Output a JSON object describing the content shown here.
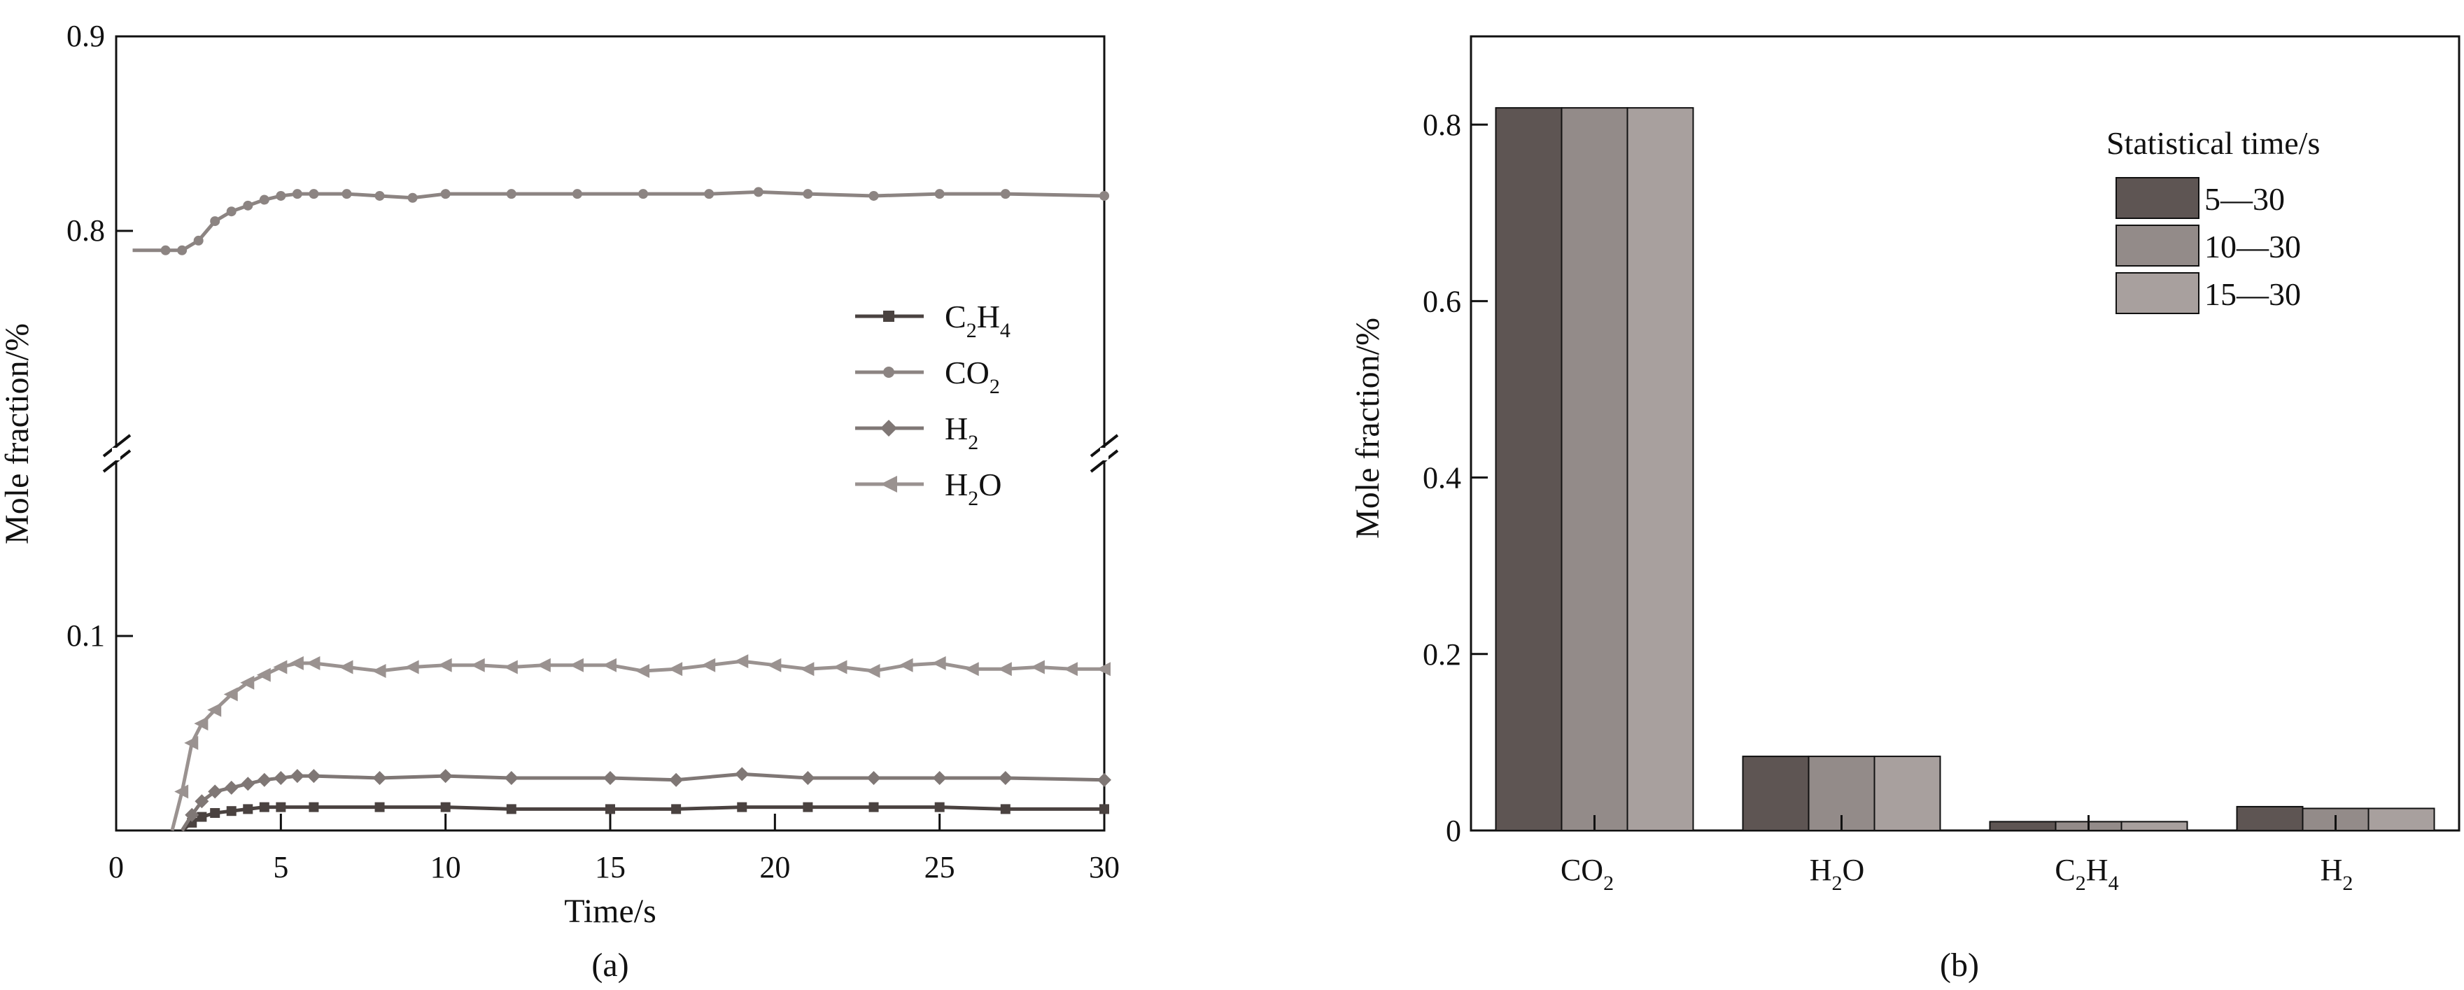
{
  "colors": {
    "axis": "#111111",
    "c2h4": "#4a4240",
    "co2": "#8c8482",
    "h2": "#7f7775",
    "h2o": "#9a9290",
    "bar_5_30": "#5e5553",
    "bar_10_30": "#938b89",
    "bar_15_30": "#a8a09e"
  },
  "chart_data": [
    {
      "panel": "(a)",
      "type": "line",
      "xlabel": "Time/s",
      "ylabel": "Mole fraction/%",
      "xlim": [
        0,
        30
      ],
      "x_ticks": [
        "0",
        "5",
        "10",
        "15",
        "20",
        "25",
        "30"
      ],
      "y_ticks_upper": [
        "0.8",
        "0.9"
      ],
      "y_ticks_lower": [
        "0.1"
      ],
      "ylim_lower": [
        0,
        0.12
      ],
      "ylim_upper": [
        0.76,
        0.9
      ],
      "broken_axis": true,
      "grid": false,
      "legend_position": "center-right",
      "series": [
        {
          "name": "C2H4",
          "label_main": "C",
          "subs": [
            "2",
            "4"
          ],
          "label_parts": [
            "C",
            "2",
            "H",
            "4"
          ],
          "marker": "square",
          "color_key": "c2h4",
          "x": [
            2.0,
            2.3,
            2.6,
            3.0,
            3.5,
            4.0,
            4.5,
            5.0,
            6.0,
            8.0,
            10.0,
            12.0,
            15.0,
            17.0,
            19.0,
            21.0,
            23.0,
            25.0,
            27.0,
            30.0
          ],
          "y": [
            0.0,
            0.004,
            0.007,
            0.009,
            0.01,
            0.011,
            0.012,
            0.012,
            0.012,
            0.012,
            0.012,
            0.011,
            0.011,
            0.011,
            0.012,
            0.012,
            0.012,
            0.012,
            0.011,
            0.011
          ]
        },
        {
          "name": "CO2",
          "label_parts": [
            "CO",
            "2"
          ],
          "marker": "circle",
          "color_key": "co2",
          "x": [
            0.5,
            1.5,
            2.0,
            2.5,
            3.0,
            3.5,
            4.0,
            4.5,
            5.0,
            5.5,
            6.0,
            7.0,
            8.0,
            9.0,
            10.0,
            12.0,
            14.0,
            16.0,
            18.0,
            19.5,
            21.0,
            23.0,
            25.0,
            27.0,
            30.0
          ],
          "y": [
            0.79,
            0.79,
            0.79,
            0.795,
            0.805,
            0.81,
            0.813,
            0.816,
            0.818,
            0.819,
            0.819,
            0.819,
            0.818,
            0.817,
            0.819,
            0.819,
            0.819,
            0.819,
            0.819,
            0.82,
            0.819,
            0.818,
            0.819,
            0.819,
            0.818
          ]
        },
        {
          "name": "H2",
          "label_parts": [
            "H",
            "2"
          ],
          "marker": "diamond",
          "color_key": "h2",
          "x": [
            2.0,
            2.3,
            2.6,
            3.0,
            3.5,
            4.0,
            4.5,
            5.0,
            5.5,
            6.0,
            8.0,
            10.0,
            12.0,
            15.0,
            17.0,
            19.0,
            21.0,
            23.0,
            25.0,
            27.0,
            30.0
          ],
          "y": [
            0.0,
            0.008,
            0.015,
            0.02,
            0.022,
            0.024,
            0.026,
            0.027,
            0.028,
            0.028,
            0.027,
            0.028,
            0.027,
            0.027,
            0.026,
            0.029,
            0.027,
            0.027,
            0.027,
            0.027,
            0.026
          ]
        },
        {
          "name": "H2O",
          "label_parts": [
            "H",
            "2",
            "O"
          ],
          "marker": "triangle-left",
          "color_key": "h2o",
          "x": [
            1.7,
            2.0,
            2.3,
            2.6,
            3.0,
            3.5,
            4.0,
            4.5,
            5.0,
            5.5,
            6.0,
            7.0,
            8.0,
            9.0,
            10.0,
            11.0,
            12.0,
            13.0,
            14.0,
            15.0,
            16.0,
            17.0,
            18.0,
            19.0,
            20.0,
            21.0,
            22.0,
            23.0,
            24.0,
            25.0,
            26.0,
            27.0,
            28.0,
            29.0,
            30.0
          ],
          "y": [
            0.0,
            0.02,
            0.045,
            0.055,
            0.062,
            0.07,
            0.076,
            0.08,
            0.084,
            0.086,
            0.086,
            0.084,
            0.082,
            0.084,
            0.085,
            0.085,
            0.084,
            0.085,
            0.085,
            0.085,
            0.082,
            0.083,
            0.085,
            0.087,
            0.085,
            0.083,
            0.084,
            0.082,
            0.085,
            0.086,
            0.083,
            0.083,
            0.084,
            0.083,
            0.083
          ]
        }
      ]
    },
    {
      "panel": "(b)",
      "type": "bar",
      "ylabel": "Mole fraction/%",
      "ylim": [
        0,
        0.9
      ],
      "y_ticks": [
        "0",
        "0.2",
        "0.4",
        "0.6",
        "0.8"
      ],
      "categories": [
        "CO2",
        "H2O",
        "C2H4",
        "H2"
      ],
      "category_label_parts": [
        [
          "CO",
          "2"
        ],
        [
          "H",
          "2",
          "O"
        ],
        [
          "C",
          "2",
          "H",
          "4"
        ],
        [
          "H",
          "2"
        ]
      ],
      "legend_title": "Statistical time/s",
      "legend_position": "top-right",
      "grid": false,
      "series": [
        {
          "name": "5—30",
          "color_key": "bar_5_30",
          "values": [
            0.819,
            0.084,
            0.01,
            0.027
          ]
        },
        {
          "name": "10—30",
          "color_key": "bar_10_30",
          "values": [
            0.819,
            0.084,
            0.01,
            0.025
          ]
        },
        {
          "name": "15—30",
          "color_key": "bar_15_30",
          "values": [
            0.819,
            0.084,
            0.01,
            0.025
          ]
        }
      ]
    }
  ]
}
